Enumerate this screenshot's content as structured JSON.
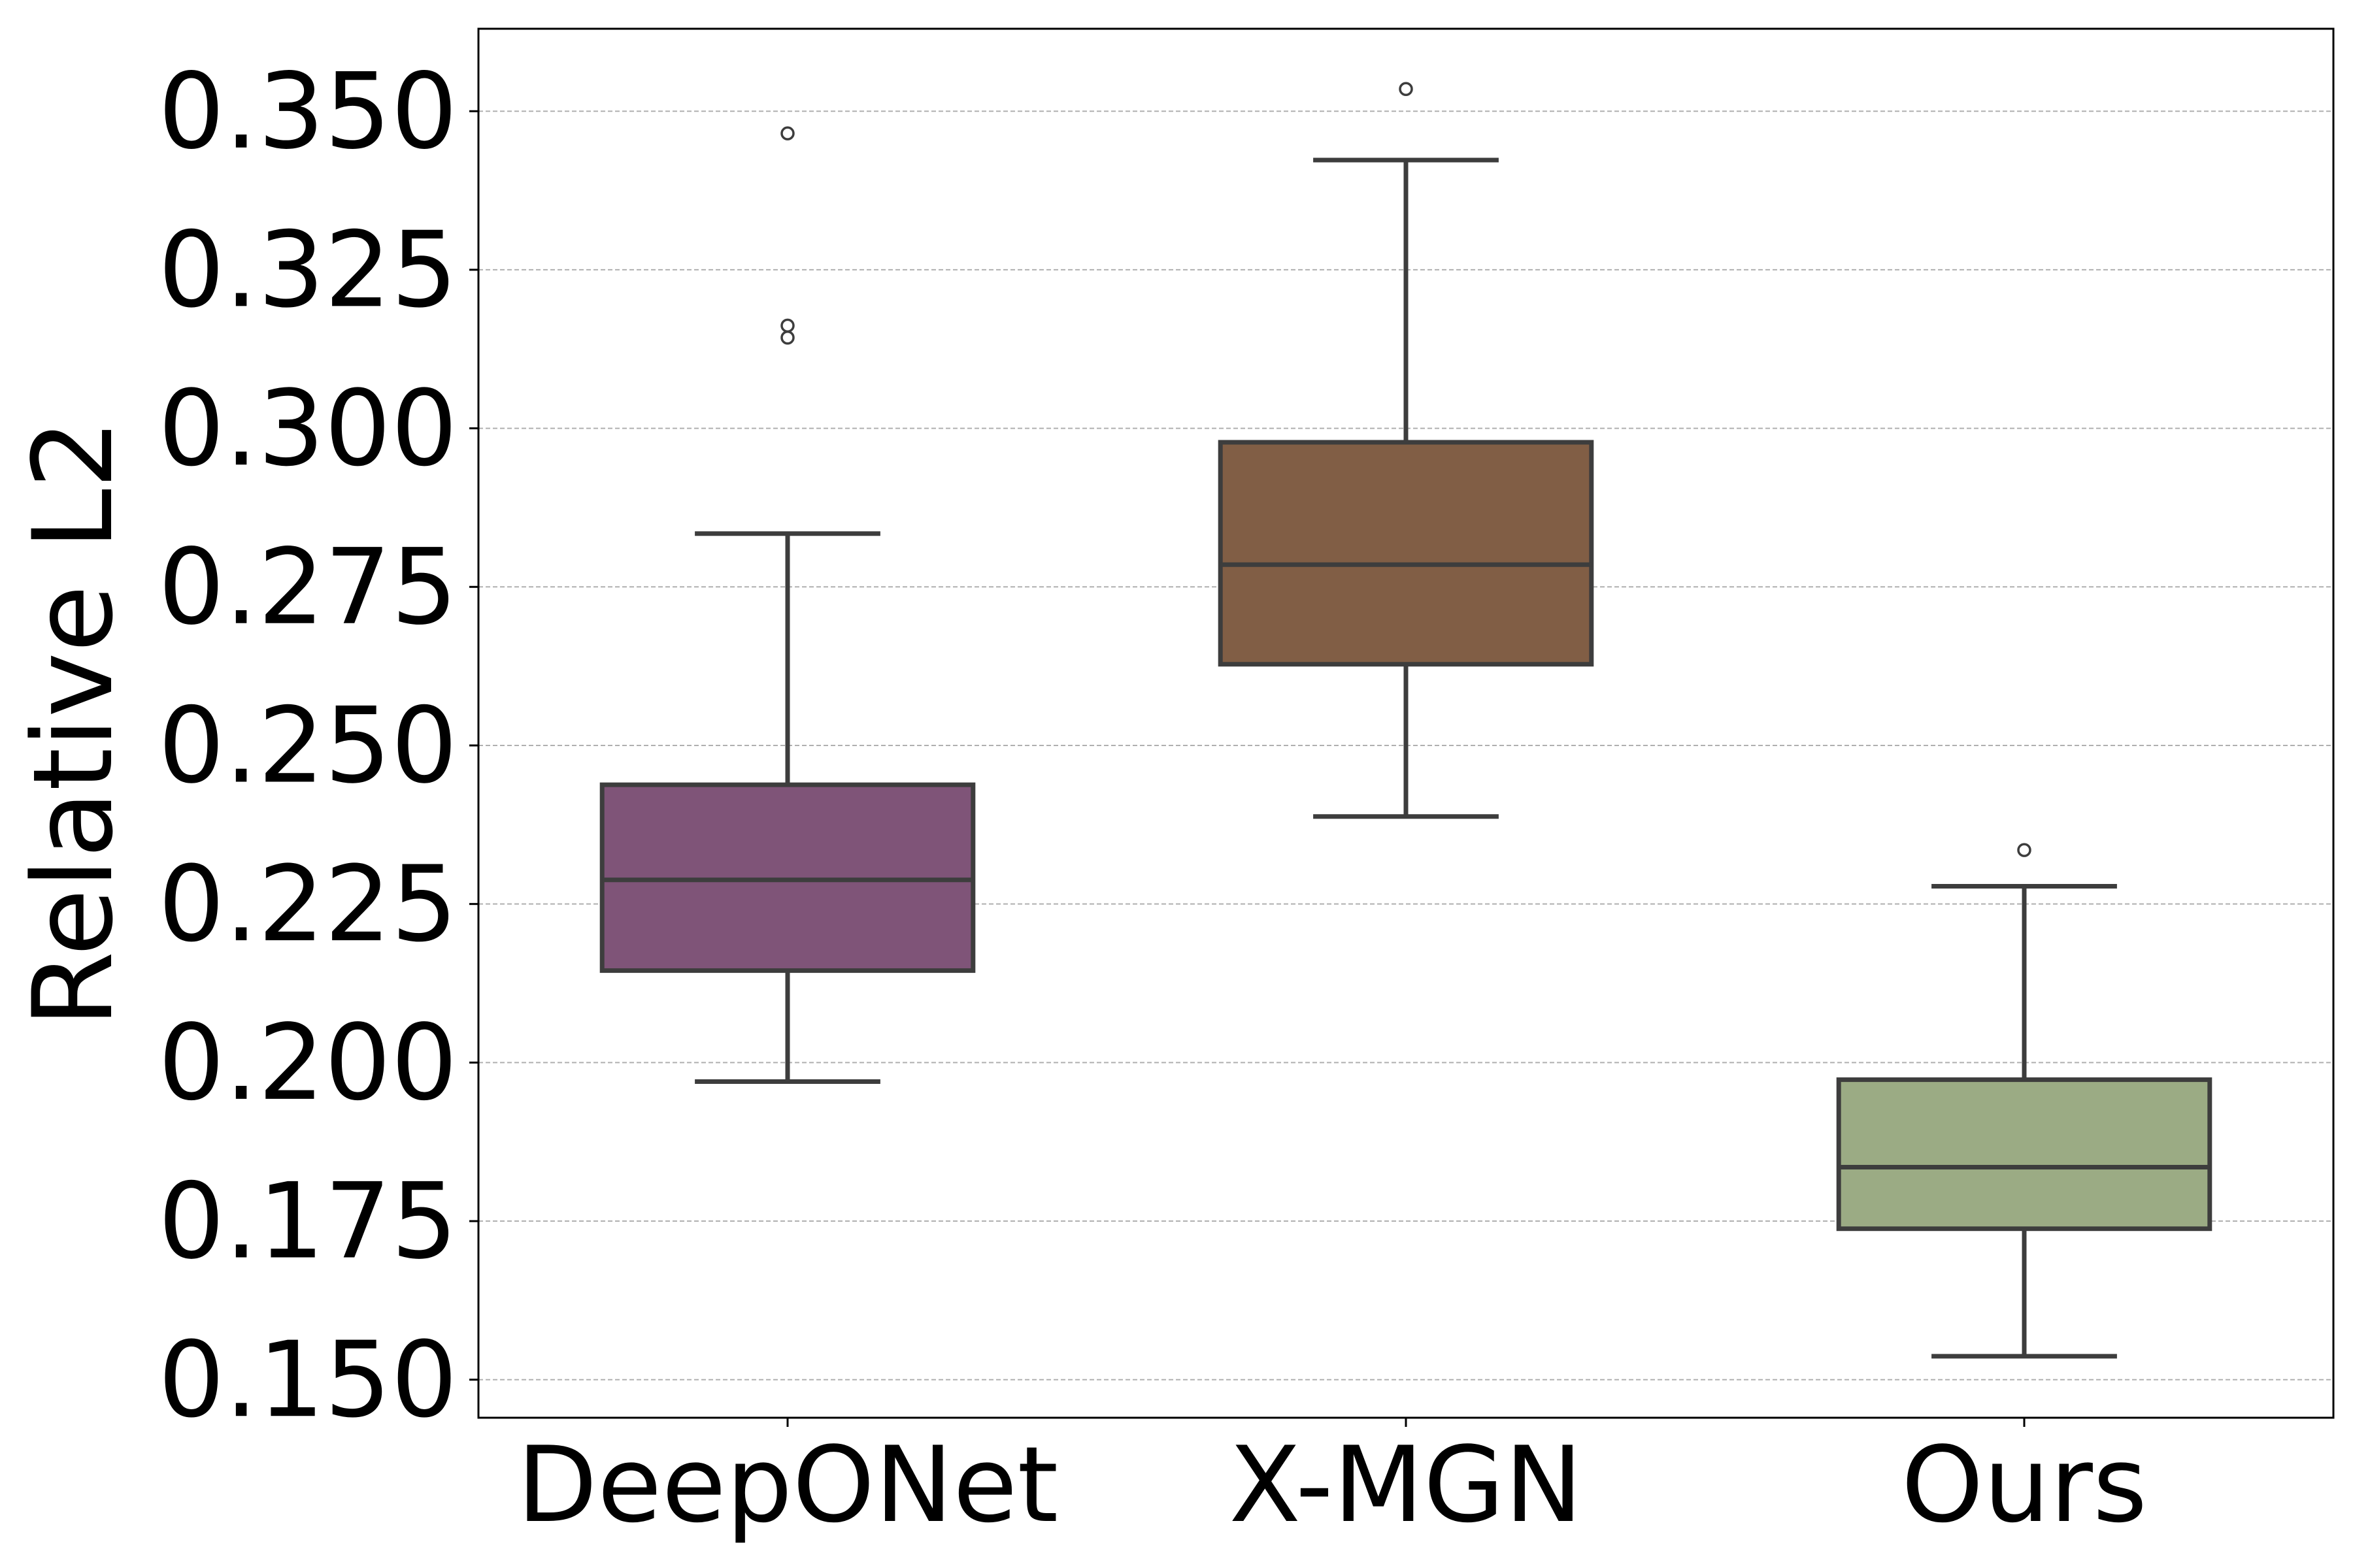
{
  "chart_data": {
    "type": "box",
    "title": "",
    "xlabel": "",
    "ylabel": "Relative L2",
    "ylim": [
      0.144,
      0.363
    ],
    "yticks": [
      0.15,
      0.175,
      0.2,
      0.225,
      0.25,
      0.275,
      0.3,
      0.325,
      0.35
    ],
    "ytick_labels": [
      "0.150",
      "0.175",
      "0.200",
      "0.225",
      "0.250",
      "0.275",
      "0.300",
      "0.325",
      "0.350"
    ],
    "grid": "horizontal dashed",
    "categories": [
      "DeepONet",
      "X-MGN",
      "Ours"
    ],
    "series": [
      {
        "name": "DeepONet",
        "color": "#7f5478",
        "whisker_low": 0.197,
        "q1": 0.2145,
        "median": 0.2288,
        "q3": 0.2438,
        "whisker_high": 0.2834,
        "outliers": [
          0.3465,
          0.3162,
          0.3143
        ]
      },
      {
        "name": "X-MGN",
        "color": "#815e45",
        "whisker_low": 0.2388,
        "q1": 0.2628,
        "median": 0.2785,
        "q3": 0.2978,
        "whisker_high": 0.3423,
        "outliers": [
          0.3535
        ]
      },
      {
        "name": "Ours",
        "color": "#9bab84",
        "whisker_low": 0.1537,
        "q1": 0.1738,
        "median": 0.1835,
        "q3": 0.1973,
        "whisker_high": 0.2278,
        "outliers": [
          0.2335
        ]
      }
    ]
  }
}
